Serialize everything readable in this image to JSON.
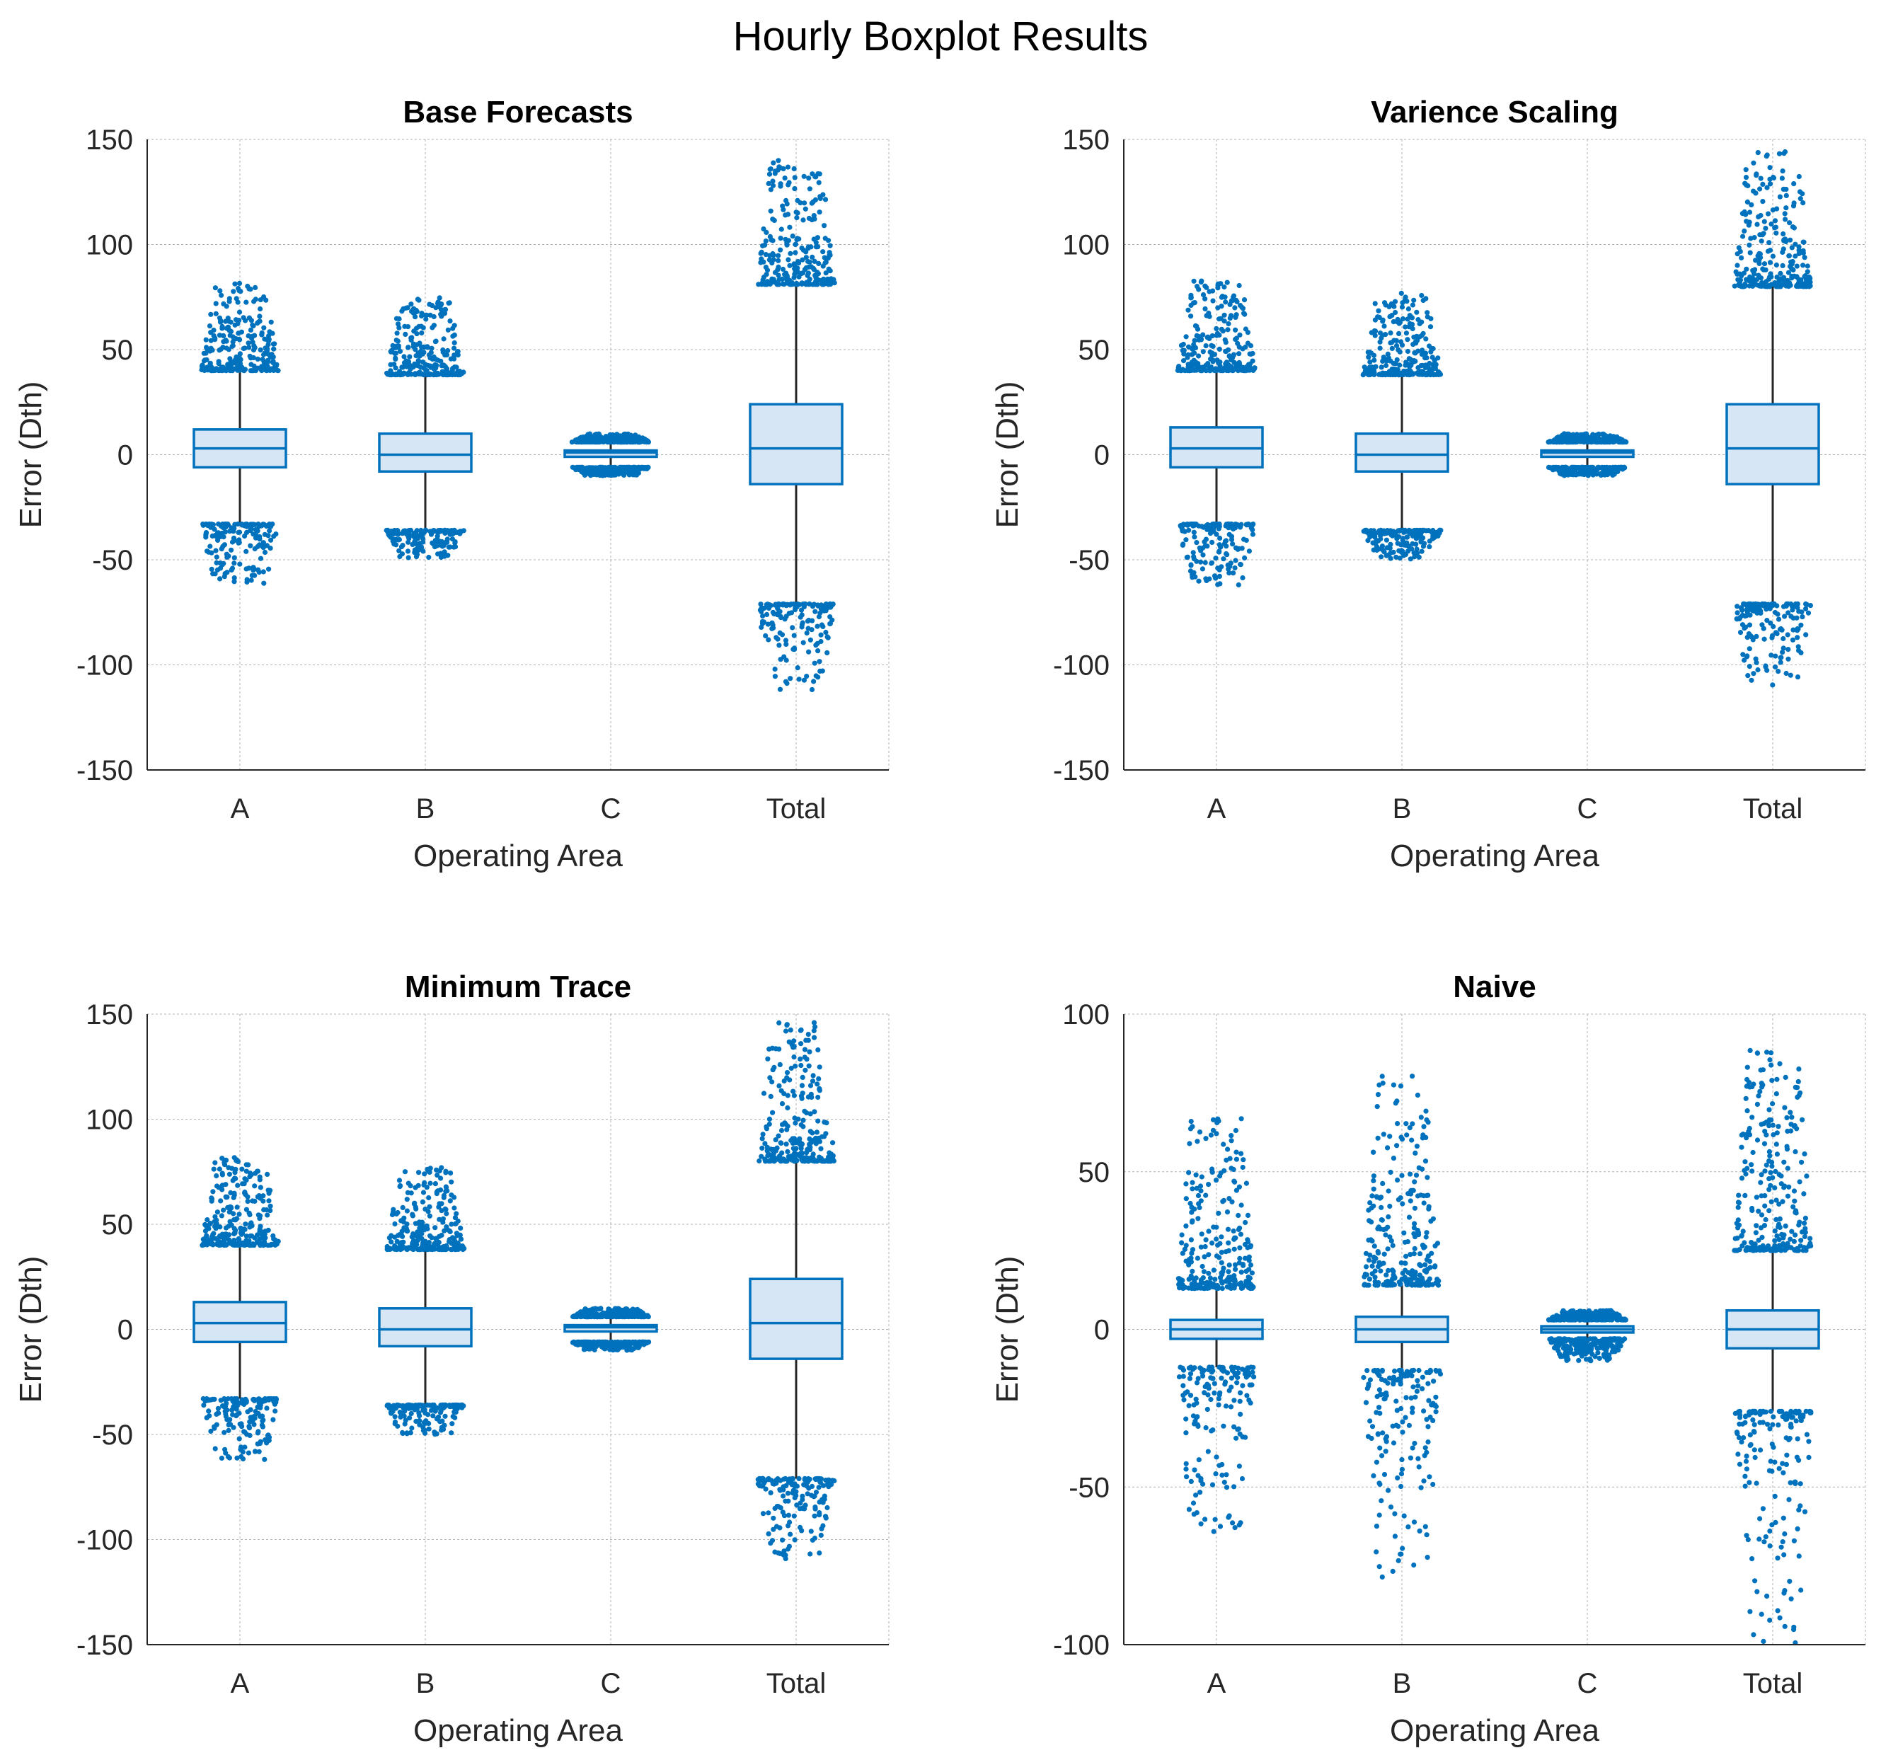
{
  "figure": {
    "title": "Hourly Boxplot Results"
  },
  "colors": {
    "accent": "#0072BD",
    "box_fill": "#D6E6F4",
    "whisker": "#262626",
    "grid": "#B0B0B0",
    "axis": "#262626"
  },
  "chart_data": [
    {
      "type": "box",
      "title": "Base Forecasts",
      "xlabel": "Operating Area",
      "ylabel": "Error (Dth)",
      "ylim": [
        -150,
        150
      ],
      "yticks": [
        -150,
        -100,
        -50,
        0,
        50,
        100,
        150
      ],
      "ytick_labels": [
        "-150",
        "-100",
        "-50",
        "0",
        "50",
        "100",
        "150"
      ],
      "grid": true,
      "categories": [
        "A",
        "B",
        "C",
        "Total"
      ],
      "boxes": [
        {
          "q1": -6,
          "median": 3,
          "q3": 12,
          "whisker_low": -33,
          "whisker_high": 40,
          "outliers_high": [
            40,
            82
          ],
          "outliers_low": [
            -48,
            -62
          ]
        },
        {
          "q1": -8,
          "median": 0,
          "q3": 10,
          "whisker_low": -36,
          "whisker_high": 38,
          "outliers_high": [
            38,
            75
          ],
          "outliers_low": [
            -46,
            -49
          ]
        },
        {
          "q1": -1,
          "median": 1,
          "q3": 2,
          "whisker_low": -6,
          "whisker_high": 6,
          "outliers_high": [
            6,
            10
          ],
          "outliers_low": [
            -6,
            -10
          ]
        },
        {
          "q1": -14,
          "median": 3,
          "q3": 24,
          "whisker_low": -71,
          "whisker_high": 81,
          "outliers_high": [
            81,
            140
          ],
          "outliers_low": [
            -89,
            -112
          ]
        }
      ]
    },
    {
      "type": "box",
      "title": "Varience Scaling",
      "xlabel": "Operating Area",
      "ylabel": "Error (Dth)",
      "ylim": [
        -150,
        150
      ],
      "yticks": [
        -150,
        -100,
        -50,
        0,
        50,
        100,
        150
      ],
      "ytick_labels": [
        "-150",
        "-100",
        "-50",
        "0",
        "50",
        "100",
        "150"
      ],
      "grid": true,
      "categories": [
        "A",
        "B",
        "C",
        "Total"
      ],
      "boxes": [
        {
          "q1": -6,
          "median": 3,
          "q3": 13,
          "whisker_low": -33,
          "whisker_high": 40,
          "outliers_high": [
            40,
            83
          ],
          "outliers_low": [
            -48,
            -62
          ]
        },
        {
          "q1": -8,
          "median": 0,
          "q3": 10,
          "whisker_low": -36,
          "whisker_high": 38,
          "outliers_high": [
            38,
            77
          ],
          "outliers_low": [
            -46,
            -50
          ]
        },
        {
          "q1": -1,
          "median": 1,
          "q3": 2,
          "whisker_low": -6,
          "whisker_high": 6,
          "outliers_high": [
            6,
            10
          ],
          "outliers_low": [
            -6,
            -10
          ]
        },
        {
          "q1": -14,
          "median": 3,
          "q3": 24,
          "whisker_low": -71,
          "whisker_high": 80,
          "outliers_high": [
            80,
            146
          ],
          "outliers_low": [
            -92,
            -110
          ]
        }
      ]
    },
    {
      "type": "box",
      "title": "Minimum Trace",
      "xlabel": "Operating Area",
      "ylabel": "Error (Dth)",
      "ylim": [
        -150,
        150
      ],
      "yticks": [
        -150,
        -100,
        -50,
        0,
        50,
        100,
        150
      ],
      "ytick_labels": [
        "-150",
        "-100",
        "-50",
        "0",
        "50",
        "100",
        "150"
      ],
      "grid": true,
      "categories": [
        "A",
        "B",
        "C",
        "Total"
      ],
      "boxes": [
        {
          "q1": -6,
          "median": 3,
          "q3": 13,
          "whisker_low": -33,
          "whisker_high": 40,
          "outliers_high": [
            40,
            83
          ],
          "outliers_low": [
            -48,
            -62
          ]
        },
        {
          "q1": -8,
          "median": 0,
          "q3": 10,
          "whisker_low": -36,
          "whisker_high": 38,
          "outliers_high": [
            38,
            77
          ],
          "outliers_low": [
            -46,
            -50
          ]
        },
        {
          "q1": -1,
          "median": 1,
          "q3": 2,
          "whisker_low": -6,
          "whisker_high": 6,
          "outliers_high": [
            6,
            10
          ],
          "outliers_low": [
            -6,
            -10
          ]
        },
        {
          "q1": -14,
          "median": 3,
          "q3": 24,
          "whisker_low": -71,
          "whisker_high": 80,
          "outliers_high": [
            80,
            146
          ],
          "outliers_low": [
            -92,
            -110
          ]
        }
      ]
    },
    {
      "type": "box",
      "title": "Naive",
      "xlabel": "Operating Area",
      "ylabel": "Error (Dth)",
      "ylim": [
        -100,
        100
      ],
      "yticks": [
        -100,
        -50,
        0,
        50,
        100
      ],
      "ytick_labels": [
        "-100",
        "-50",
        "0",
        "50",
        "100"
      ],
      "grid": true,
      "categories": [
        "A",
        "B",
        "C",
        "Total"
      ],
      "boxes": [
        {
          "q1": -3,
          "median": 0,
          "q3": 3,
          "whisker_low": -12,
          "whisker_high": 13,
          "outliers_high": [
            13,
            67
          ],
          "outliers_low": [
            -28,
            -66
          ]
        },
        {
          "q1": -4,
          "median": 0,
          "q3": 4,
          "whisker_low": -13,
          "whisker_high": 14,
          "outliers_high": [
            14,
            81
          ],
          "outliers_low": [
            -30,
            -79
          ]
        },
        {
          "q1": -1,
          "median": 0,
          "q3": 1,
          "whisker_low": -3,
          "whisker_high": 3,
          "outliers_high": [
            3,
            6
          ],
          "outliers_low": [
            -3,
            -10
          ]
        },
        {
          "q1": -6,
          "median": 0,
          "q3": 6,
          "whisker_low": -26,
          "whisker_high": 25,
          "outliers_high": [
            25,
            89
          ],
          "outliers_low": [
            -47,
            -100
          ]
        }
      ]
    }
  ]
}
